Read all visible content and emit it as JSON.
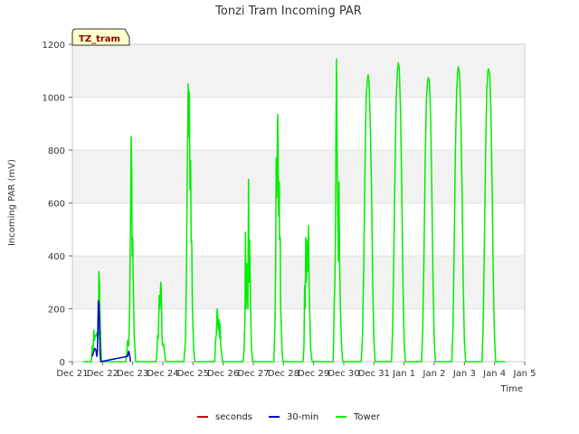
{
  "chart_data": {
    "type": "line",
    "title": "Tonzi Tram Incoming PAR",
    "xlabel": "Time",
    "ylabel": "Incoming PAR (mV)",
    "ylim": [
      0,
      1200
    ],
    "yticks": [
      0,
      200,
      400,
      600,
      800,
      1000,
      1200
    ],
    "xlim": [
      0,
      15
    ],
    "x_unit": "days since Dec 21",
    "xtick_labels": [
      "Dec 21",
      "Dec 22",
      "Dec 23",
      "Dec 24",
      "Dec 25",
      "Dec 26",
      "Dec 27",
      "Dec 28",
      "Dec 29",
      "Dec 30",
      "Dec 31",
      "Jan 1",
      "Jan 2",
      "Jan 3",
      "Jan 4",
      "Jan 5"
    ],
    "badge": "TZ_tram",
    "colors": {
      "seconds": "#cc0000",
      "30-min": "#0000cc",
      "Tower": "#00ee00",
      "band": "#f2f2f2",
      "grid": "#ffffff",
      "badge_bg": "#ffffcc"
    },
    "legend": [
      {
        "name": "seconds",
        "color": "#cc0000"
      },
      {
        "name": "30-min",
        "color": "#0000cc"
      },
      {
        "name": "Tower",
        "color": "#00ee00"
      }
    ],
    "series": [
      {
        "name": "Tower",
        "color": "#00ee00",
        "points": [
          [
            0.35,
            0
          ],
          [
            0.63,
            0
          ],
          [
            0.66,
            60
          ],
          [
            0.69,
            40
          ],
          [
            0.71,
            120
          ],
          [
            0.73,
            80
          ],
          [
            0.75,
            100
          ],
          [
            0.78,
            95
          ],
          [
            0.82,
            110
          ],
          [
            0.85,
            85
          ],
          [
            0.87,
            200
          ],
          [
            0.88,
            340
          ],
          [
            0.9,
            300
          ],
          [
            0.92,
            150
          ],
          [
            0.95,
            40
          ],
          [
            0.97,
            0
          ],
          [
            1.77,
            0
          ],
          [
            1.8,
            30
          ],
          [
            1.83,
            80
          ],
          [
            1.87,
            60
          ],
          [
            1.9,
            200
          ],
          [
            1.93,
            550
          ],
          [
            1.95,
            850
          ],
          [
            1.97,
            700
          ],
          [
            1.98,
            400
          ],
          [
            2.0,
            470
          ],
          [
            2.02,
            300
          ],
          [
            2.05,
            100
          ],
          [
            2.1,
            0
          ],
          [
            2.77,
            0
          ],
          [
            2.8,
            20
          ],
          [
            2.83,
            100
          ],
          [
            2.85,
            90
          ],
          [
            2.88,
            250
          ],
          [
            2.9,
            200
          ],
          [
            2.93,
            300
          ],
          [
            2.95,
            280
          ],
          [
            2.97,
            100
          ],
          [
            2.99,
            60
          ],
          [
            3.01,
            70
          ],
          [
            3.03,
            60
          ],
          [
            3.06,
            30
          ],
          [
            3.1,
            0
          ],
          [
            3.7,
            0
          ],
          [
            3.75,
            80
          ],
          [
            3.78,
            300
          ],
          [
            3.81,
            700
          ],
          [
            3.84,
            1050
          ],
          [
            3.86,
            850
          ],
          [
            3.88,
            1020
          ],
          [
            3.9,
            650
          ],
          [
            3.92,
            760
          ],
          [
            3.94,
            450
          ],
          [
            3.95,
            460
          ],
          [
            3.96,
            440
          ],
          [
            3.98,
            200
          ],
          [
            4.02,
            50
          ],
          [
            4.06,
            0
          ],
          [
            4.72,
            0
          ],
          [
            4.75,
            80
          ],
          [
            4.78,
            110
          ],
          [
            4.8,
            200
          ],
          [
            4.82,
            170
          ],
          [
            4.84,
            120
          ],
          [
            4.86,
            160
          ],
          [
            4.88,
            90
          ],
          [
            4.9,
            145
          ],
          [
            4.92,
            60
          ],
          [
            4.95,
            30
          ],
          [
            4.98,
            0
          ],
          [
            5.66,
            0
          ],
          [
            5.69,
            40
          ],
          [
            5.72,
            150
          ],
          [
            5.74,
            490
          ],
          [
            5.76,
            200
          ],
          [
            5.78,
            370
          ],
          [
            5.8,
            280
          ],
          [
            5.82,
            200
          ],
          [
            5.84,
            690
          ],
          [
            5.86,
            300
          ],
          [
            5.88,
            460
          ],
          [
            5.91,
            200
          ],
          [
            5.94,
            50
          ],
          [
            5.98,
            0
          ],
          [
            6.68,
            0
          ],
          [
            6.72,
            150
          ],
          [
            6.74,
            380
          ],
          [
            6.76,
            770
          ],
          [
            6.78,
            620
          ],
          [
            6.8,
            900
          ],
          [
            6.81,
            935
          ],
          [
            6.83,
            650
          ],
          [
            6.84,
            550
          ],
          [
            6.86,
            680
          ],
          [
            6.87,
            460
          ],
          [
            6.89,
            470
          ],
          [
            6.91,
            200
          ],
          [
            6.95,
            50
          ],
          [
            6.98,
            0
          ],
          [
            7.65,
            0
          ],
          [
            7.68,
            60
          ],
          [
            7.7,
            290
          ],
          [
            7.72,
            200
          ],
          [
            7.74,
            470
          ],
          [
            7.76,
            300
          ],
          [
            7.77,
            460
          ],
          [
            7.79,
            340
          ],
          [
            7.81,
            350
          ],
          [
            7.83,
            515
          ],
          [
            7.85,
            300
          ],
          [
            7.87,
            200
          ],
          [
            7.9,
            50
          ],
          [
            7.95,
            0
          ],
          [
            8.65,
            0
          ],
          [
            8.68,
            200
          ],
          [
            8.7,
            280
          ],
          [
            8.72,
            430
          ],
          [
            8.74,
            850
          ],
          [
            8.76,
            1145
          ],
          [
            8.78,
            800
          ],
          [
            8.8,
            560
          ],
          [
            8.82,
            380
          ],
          [
            8.84,
            680
          ],
          [
            8.86,
            400
          ],
          [
            8.89,
            200
          ],
          [
            8.93,
            50
          ],
          [
            8.97,
            0
          ],
          [
            9.58,
            0
          ],
          [
            9.62,
            100
          ],
          [
            9.66,
            350
          ],
          [
            9.7,
            700
          ],
          [
            9.74,
            1000
          ],
          [
            9.78,
            1060
          ],
          [
            9.81,
            1085
          ],
          [
            9.84,
            1050
          ],
          [
            9.88,
            900
          ],
          [
            9.92,
            650
          ],
          [
            9.96,
            300
          ],
          [
            10.0,
            80
          ],
          [
            10.04,
            0
          ],
          [
            10.58,
            0
          ],
          [
            10.62,
            120
          ],
          [
            10.66,
            400
          ],
          [
            10.7,
            750
          ],
          [
            10.74,
            1000
          ],
          [
            10.78,
            1100
          ],
          [
            10.81,
            1130
          ],
          [
            10.84,
            1110
          ],
          [
            10.88,
            950
          ],
          [
            10.92,
            680
          ],
          [
            10.96,
            320
          ],
          [
            11.0,
            80
          ],
          [
            11.04,
            0
          ],
          [
            11.58,
            0
          ],
          [
            11.62,
            120
          ],
          [
            11.66,
            420
          ],
          [
            11.7,
            760
          ],
          [
            11.74,
            990
          ],
          [
            11.78,
            1060
          ],
          [
            11.8,
            1075
          ],
          [
            11.84,
            1060
          ],
          [
            11.88,
            920
          ],
          [
            11.92,
            650
          ],
          [
            11.96,
            300
          ],
          [
            12.0,
            80
          ],
          [
            12.04,
            0
          ],
          [
            12.58,
            0
          ],
          [
            12.62,
            120
          ],
          [
            12.66,
            430
          ],
          [
            12.7,
            780
          ],
          [
            12.74,
            1020
          ],
          [
            12.78,
            1100
          ],
          [
            12.8,
            1115
          ],
          [
            12.84,
            1090
          ],
          [
            12.88,
            940
          ],
          [
            12.92,
            660
          ],
          [
            12.96,
            300
          ],
          [
            13.0,
            80
          ],
          [
            13.04,
            0
          ],
          [
            13.58,
            0
          ],
          [
            13.62,
            120
          ],
          [
            13.66,
            420
          ],
          [
            13.7,
            780
          ],
          [
            13.74,
            1020
          ],
          [
            13.78,
            1100
          ],
          [
            13.8,
            1107
          ],
          [
            13.84,
            1090
          ],
          [
            13.88,
            940
          ],
          [
            13.92,
            660
          ],
          [
            13.96,
            300
          ],
          [
            14.0,
            80
          ],
          [
            14.04,
            0
          ],
          [
            14.35,
            0
          ]
        ]
      },
      {
        "name": "30-min",
        "color": "#0000cc",
        "points": [
          [
            0.66,
            20
          ],
          [
            0.7,
            35
          ],
          [
            0.74,
            50
          ],
          [
            0.78,
            45
          ],
          [
            0.81,
            20
          ],
          [
            0.83,
            40
          ],
          [
            0.86,
            230
          ],
          [
            0.88,
            220
          ],
          [
            0.9,
            150
          ],
          [
            0.92,
            30
          ],
          [
            0.94,
            0
          ],
          [
            1.83,
            20
          ],
          [
            1.87,
            40
          ],
          [
            1.9,
            25
          ],
          [
            1.93,
            0
          ]
        ]
      }
    ]
  }
}
